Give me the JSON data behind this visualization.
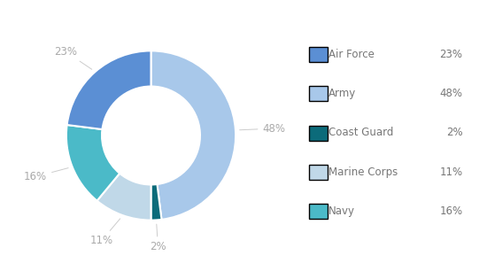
{
  "labels": [
    "Air Force",
    "Army",
    "Coast Guard",
    "Marine Corps",
    "Navy"
  ],
  "values": [
    23,
    48,
    2,
    11,
    16
  ],
  "colors": [
    "#5B8FD4",
    "#A8C8EA",
    "#0C6B7A",
    "#C0D8E8",
    "#4BBAC8"
  ],
  "percentages": [
    "23%",
    "48%",
    "2%",
    "11%",
    "16%"
  ],
  "legend_labels": [
    "Air Force",
    "Army",
    "Coast Guard",
    "Marine Corps",
    "Navy"
  ],
  "legend_percentages": [
    "23%",
    "48%",
    "2%",
    "11%",
    "16%"
  ],
  "background_color": "#ffffff",
  "text_color": "#aaaaaa",
  "label_fontsize": 8.5,
  "legend_fontsize": 8.5
}
